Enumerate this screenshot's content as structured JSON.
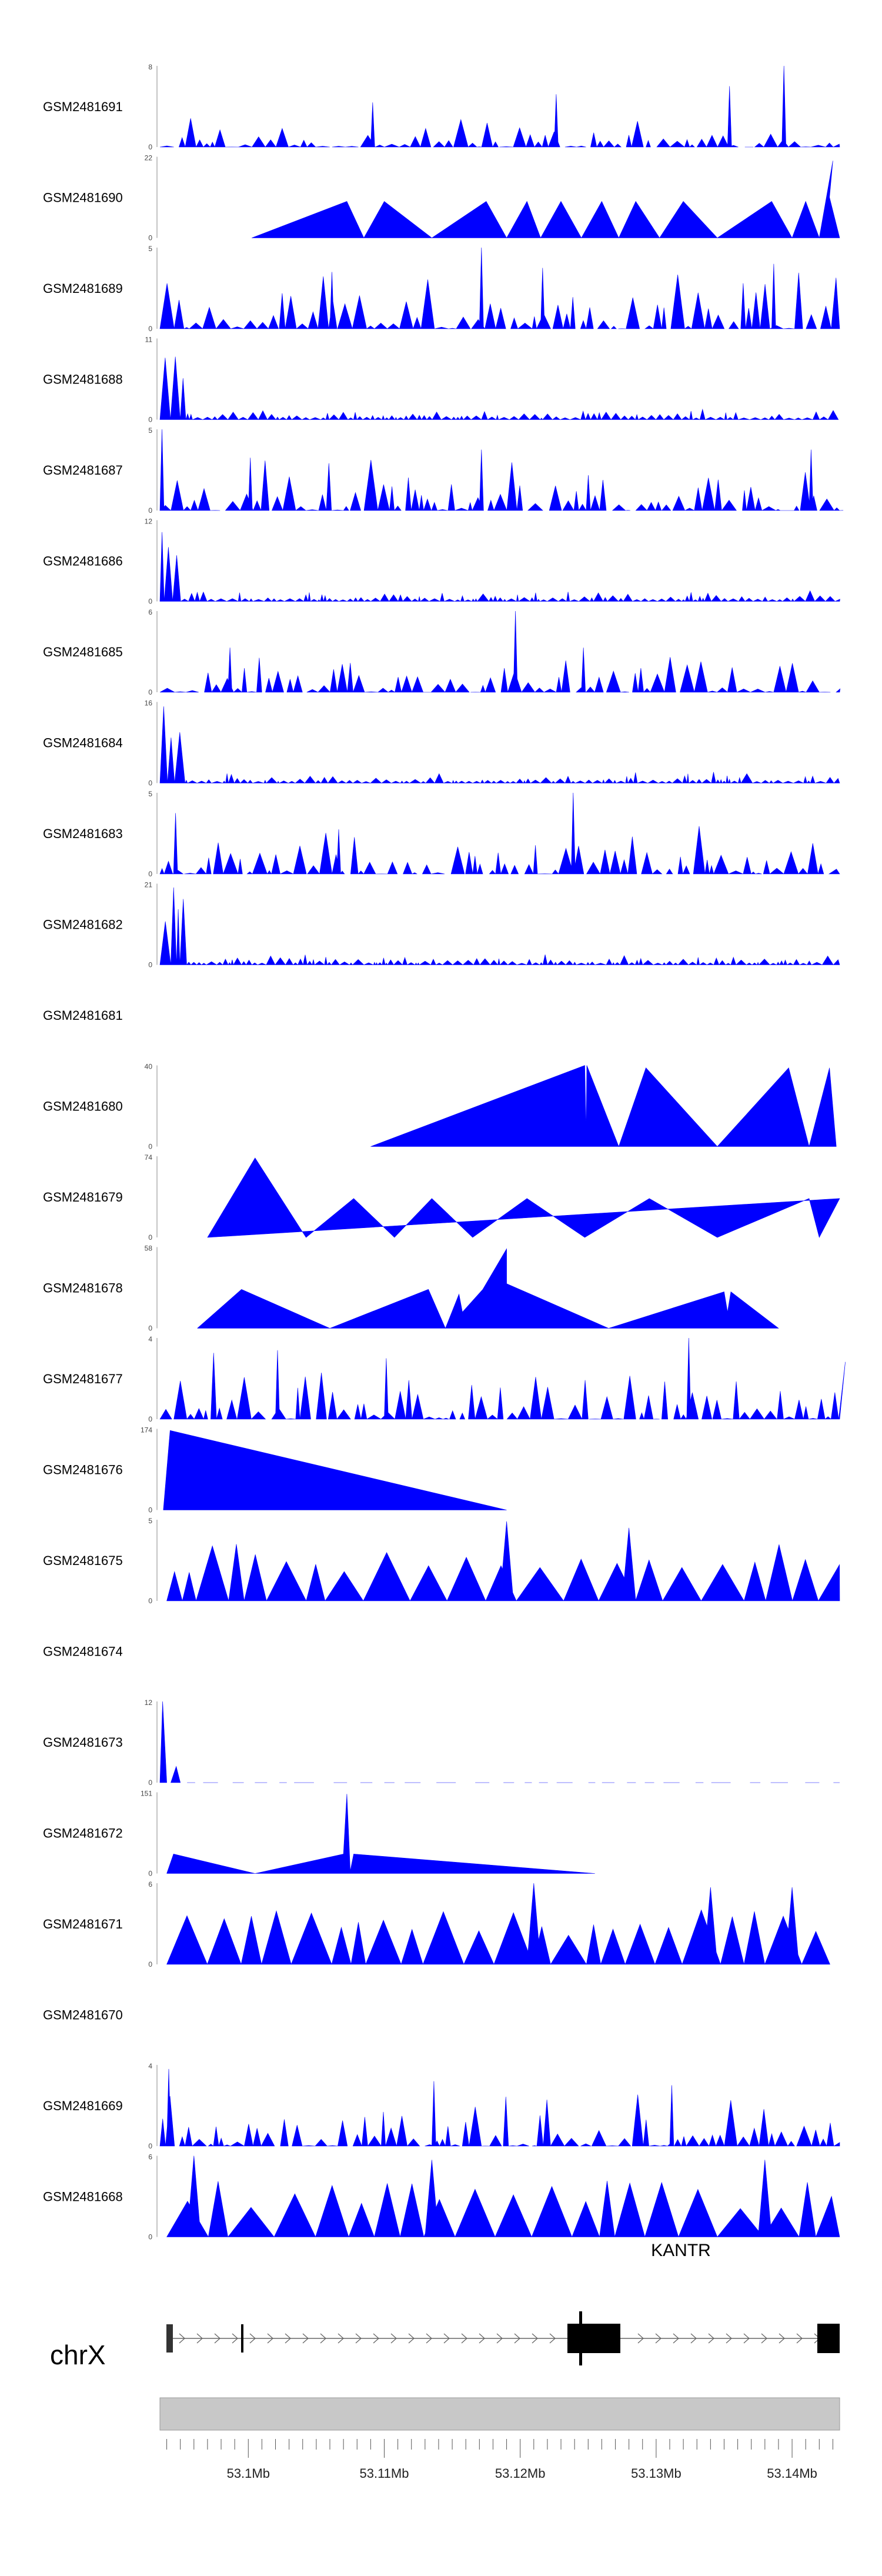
{
  "chart_data": {
    "type": "area",
    "genomic_axis": {
      "chromosome": "chrX",
      "range_mb": [
        53.0935,
        53.1435
      ],
      "tick_labels": [
        "53.1Mb",
        "53.11Mb",
        "53.12Mb",
        "53.13Mb",
        "53.14Mb"
      ]
    },
    "gene_track": {
      "gene_label": "KANTR"
    },
    "tracks": [
      {
        "name": "GSM2481691",
        "ymax": "8",
        "ymin": "0",
        "mode": "dense",
        "seed": 11,
        "max": 8,
        "typ": 1.6,
        "peaks": [
          [
            0.835,
            0.75
          ],
          [
            0.915,
            1.0
          ],
          [
            0.58,
            0.65
          ],
          [
            0.31,
            0.55
          ]
        ]
      },
      {
        "name": "GSM2481690",
        "ymax": "22",
        "ymin": "0",
        "mode": "sparse",
        "seed": 3,
        "max": 22,
        "pts": [
          [
            0.135,
            0
          ],
          [
            0.275,
            0.45
          ],
          [
            0.3,
            0
          ],
          [
            0.33,
            0.45
          ],
          [
            0.4,
            0
          ],
          [
            0.48,
            0.45
          ],
          [
            0.51,
            0
          ],
          [
            0.54,
            0.45
          ],
          [
            0.56,
            0
          ],
          [
            0.59,
            0.45
          ],
          [
            0.62,
            0
          ],
          [
            0.65,
            0.45
          ],
          [
            0.675,
            0
          ],
          [
            0.7,
            0.45
          ],
          [
            0.735,
            0
          ],
          [
            0.77,
            0.45
          ],
          [
            0.82,
            0
          ],
          [
            0.9,
            0.45
          ],
          [
            0.93,
            0
          ],
          [
            0.95,
            0.45
          ],
          [
            0.97,
            0
          ],
          [
            0.99,
            0.95
          ],
          [
            0.985,
            0.5
          ],
          [
            1.0,
            0
          ]
        ]
      },
      {
        "name": "GSM2481689",
        "ymax": "5",
        "ymin": "0",
        "mode": "dense",
        "seed": 23,
        "max": 5,
        "typ": 2.2,
        "peaks": [
          [
            0.47,
            1.0
          ],
          [
            0.25,
            0.7
          ],
          [
            0.56,
            0.75
          ],
          [
            0.9,
            0.8
          ]
        ]
      },
      {
        "name": "GSM2481688",
        "ymax": "11",
        "ymin": "0",
        "mode": "decay",
        "seed": 5,
        "max": 11
      },
      {
        "name": "GSM2481687",
        "ymax": "5",
        "ymin": "0",
        "mode": "dense",
        "seed": 31,
        "max": 5,
        "typ": 1.7,
        "peaks": [
          [
            0.0,
            1.0
          ],
          [
            0.47,
            0.75
          ],
          [
            0.955,
            0.75
          ],
          [
            0.13,
            0.65
          ]
        ]
      },
      {
        "name": "GSM2481686",
        "ymax": "12",
        "ymin": "0",
        "mode": "decay",
        "seed": 9,
        "max": 12
      },
      {
        "name": "GSM2481685",
        "ymax": "6",
        "ymin": "0",
        "mode": "dense",
        "seed": 41,
        "max": 6,
        "typ": 1.5,
        "peaks": [
          [
            0.52,
            1.0
          ],
          [
            0.1,
            0.55
          ],
          [
            0.62,
            0.55
          ]
        ]
      },
      {
        "name": "GSM2481684",
        "ymax": "16",
        "ymin": "0",
        "mode": "decay",
        "seed": 13,
        "max": 16
      },
      {
        "name": "GSM2481683",
        "ymax": "5",
        "ymin": "0",
        "mode": "dense",
        "seed": 53,
        "max": 5,
        "typ": 1.6,
        "peaks": [
          [
            0.605,
            1.0
          ],
          [
            0.02,
            0.75
          ],
          [
            0.26,
            0.55
          ]
        ]
      },
      {
        "name": "GSM2481682",
        "ymax": "21",
        "ymin": "0",
        "mode": "decay",
        "seed": 17,
        "max": 21
      },
      {
        "name": "GSM2481681",
        "ymax": "",
        "ymin": "",
        "mode": "empty"
      },
      {
        "name": "GSM2481680",
        "ymax": "40",
        "ymin": "0",
        "mode": "sparse",
        "seed": 0,
        "max": 40,
        "pts": [
          [
            0.31,
            0
          ],
          [
            0.625,
            1.0
          ],
          [
            0.627,
            0.2
          ],
          [
            0.628,
            1.0
          ],
          [
            0.675,
            0
          ],
          [
            0.715,
            0.97
          ],
          [
            0.82,
            0
          ],
          [
            0.925,
            0.97
          ],
          [
            0.955,
            0
          ],
          [
            0.985,
            0.97
          ],
          [
            0.995,
            0
          ]
        ]
      },
      {
        "name": "GSM2481679",
        "ymax": "74",
        "ymin": "0",
        "mode": "sparse",
        "seed": 0,
        "max": 74,
        "pts": [
          [
            0.07,
            0
          ],
          [
            0.14,
            0.98
          ],
          [
            0.215,
            0
          ],
          [
            0.285,
            0.48
          ],
          [
            0.345,
            0
          ],
          [
            0.4,
            0.48
          ],
          [
            0.46,
            0
          ],
          [
            0.54,
            0.48
          ],
          [
            0.625,
            0
          ],
          [
            0.72,
            0.48
          ],
          [
            0.82,
            0
          ],
          [
            0.955,
            0.48
          ],
          [
            0.97,
            0
          ],
          [
            1.0,
            0.48
          ]
        ]
      },
      {
        "name": "GSM2481678",
        "ymax": "58",
        "ymin": "0",
        "mode": "sparse",
        "seed": 0,
        "max": 58,
        "pts": [
          [
            0.055,
            0
          ],
          [
            0.12,
            0.48
          ],
          [
            0.25,
            0
          ],
          [
            0.395,
            0.48
          ],
          [
            0.42,
            0
          ],
          [
            0.44,
            0.42
          ],
          [
            0.445,
            0.2
          ],
          [
            0.475,
            0.48
          ],
          [
            0.51,
            0.98
          ],
          [
            0.51,
            0.55
          ],
          [
            0.66,
            0
          ],
          [
            0.83,
            0.45
          ],
          [
            0.835,
            0.2
          ],
          [
            0.84,
            0.45
          ],
          [
            0.91,
            0
          ]
        ]
      },
      {
        "name": "GSM2481677",
        "ymax": "4",
        "ymin": "0",
        "mode": "dense",
        "seed": 67,
        "max": 4,
        "typ": 1.8,
        "peaks": [
          [
            0.775,
            1.0
          ],
          [
            0.17,
            0.85
          ],
          [
            0.33,
            0.75
          ]
        ]
      },
      {
        "name": "GSM2481676",
        "ymax": "174",
        "ymin": "0",
        "mode": "sparse",
        "seed": 0,
        "max": 174,
        "pts": [
          [
            0.005,
            0
          ],
          [
            0.015,
            0.98
          ],
          [
            0.51,
            0
          ],
          [
            0.015,
            0
          ]
        ]
      },
      {
        "name": "GSM2481675",
        "ymax": "5",
        "ymin": "0",
        "mode": "spiky",
        "seed": 71,
        "max": 5,
        "typ": 3.0,
        "peaks": [
          [
            0.51,
            0.98
          ],
          [
            0.69,
            0.9
          ]
        ]
      },
      {
        "name": "GSM2481674",
        "ymax": "",
        "ymin": "",
        "mode": "empty"
      },
      {
        "name": "GSM2481673",
        "ymax": "12",
        "ymin": "0",
        "mode": "sparse-decay",
        "seed": 83,
        "max": 12
      },
      {
        "name": "GSM2481672",
        "ymax": "151",
        "ymin": "0",
        "mode": "sparse",
        "seed": 0,
        "max": 151,
        "pts": [
          [
            0.01,
            0
          ],
          [
            0.02,
            0.24
          ],
          [
            0.14,
            0
          ],
          [
            0.27,
            0.24
          ],
          [
            0.275,
            0.98
          ],
          [
            0.28,
            0.03
          ],
          [
            0.285,
            0.24
          ],
          [
            0.64,
            0
          ]
        ]
      },
      {
        "name": "GSM2481671",
        "ymax": "6",
        "ymin": "0",
        "mode": "spiky",
        "seed": 97,
        "max": 6,
        "typ": 3.2,
        "peaks": [
          [
            0.55,
            1.0
          ],
          [
            0.81,
            0.95
          ],
          [
            0.93,
            0.95
          ]
        ]
      },
      {
        "name": "GSM2481670",
        "ymax": "",
        "ymin": "",
        "mode": "empty"
      },
      {
        "name": "GSM2481669",
        "ymax": "4",
        "ymin": "0",
        "mode": "dense",
        "seed": 101,
        "max": 4,
        "typ": 1.5,
        "peaks": [
          [
            0.01,
            0.95
          ],
          [
            0.4,
            0.8
          ],
          [
            0.75,
            0.75
          ]
        ]
      },
      {
        "name": "GSM2481668",
        "ymax": "6",
        "ymin": "0",
        "mode": "spiky",
        "seed": 109,
        "max": 6,
        "typ": 3.4,
        "peaks": [
          [
            0.05,
            1.0
          ],
          [
            0.4,
            0.95
          ],
          [
            0.89,
            0.95
          ]
        ]
      }
    ]
  }
}
